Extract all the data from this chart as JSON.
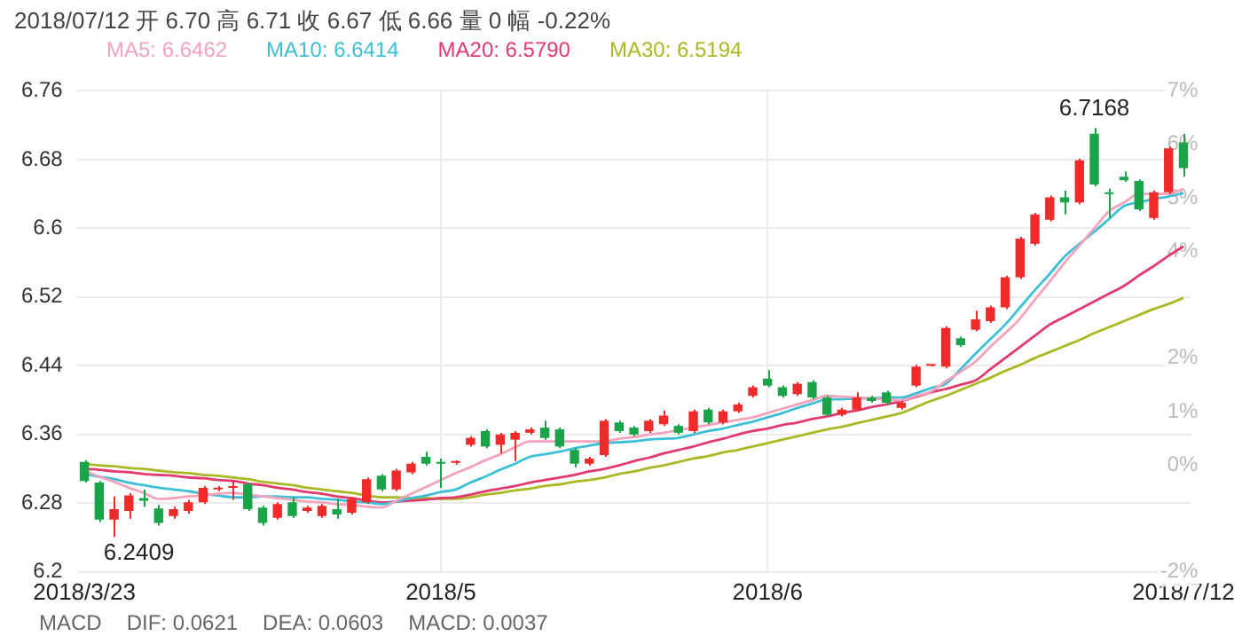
{
  "chart_data": {
    "type": "candlestick",
    "title": "2018/07/12 开 6.70 高 6.71 收 6.67 低 6.66 量 0 幅 -0.22%",
    "categories": [
      "2018/3/23",
      null,
      null,
      null,
      null,
      null,
      null,
      null,
      null,
      null,
      null,
      null,
      null,
      null,
      null,
      null,
      null,
      null,
      null,
      null,
      null,
      null,
      null,
      null,
      "2018/5",
      null,
      null,
      null,
      null,
      null,
      null,
      null,
      null,
      null,
      null,
      null,
      null,
      null,
      null,
      null,
      null,
      null,
      null,
      null,
      null,
      null,
      "2018/6",
      null,
      null,
      null,
      null,
      null,
      null,
      null,
      null,
      null,
      null,
      null,
      null,
      null,
      null,
      null,
      null,
      null,
      null,
      null,
      null,
      null,
      null,
      null,
      null,
      null,
      null,
      null,
      "2018/7/12"
    ],
    "ohlc": [
      [
        6.328,
        6.33,
        6.304,
        6.306
      ],
      [
        6.304,
        6.306,
        6.258,
        6.261
      ],
      [
        6.261,
        6.288,
        6.2409,
        6.273
      ],
      [
        6.271,
        6.292,
        6.262,
        6.289
      ],
      [
        6.286,
        6.296,
        6.276,
        6.283
      ],
      [
        6.274,
        6.278,
        6.254,
        6.257
      ],
      [
        6.265,
        6.276,
        6.262,
        6.273
      ],
      [
        6.271,
        6.284,
        6.268,
        6.281
      ],
      [
        6.281,
        6.3,
        6.279,
        6.298
      ],
      [
        6.296,
        6.3,
        6.294,
        6.298
      ],
      [
        6.298,
        6.306,
        6.284,
        6.298
      ],
      [
        6.302,
        6.304,
        6.271,
        6.273
      ],
      [
        6.275,
        6.277,
        6.254,
        6.257
      ],
      [
        6.263,
        6.281,
        6.261,
        6.279
      ],
      [
        6.281,
        6.287,
        6.263,
        6.265
      ],
      [
        6.271,
        6.277,
        6.269,
        6.275
      ],
      [
        6.265,
        6.279,
        6.263,
        6.277
      ],
      [
        6.273,
        6.285,
        6.262,
        6.267
      ],
      [
        6.269,
        6.287,
        6.267,
        6.285
      ],
      [
        6.281,
        6.31,
        6.279,
        6.308
      ],
      [
        6.312,
        6.314,
        6.294,
        6.296
      ],
      [
        6.296,
        6.32,
        6.294,
        6.318
      ],
      [
        6.316,
        6.328,
        6.314,
        6.326
      ],
      [
        6.334,
        6.34,
        6.324,
        6.326
      ],
      [
        6.328,
        6.332,
        6.298,
        6.326
      ],
      [
        6.327,
        6.33,
        6.325,
        6.328
      ],
      [
        6.348,
        6.358,
        6.346,
        6.356
      ],
      [
        6.364,
        6.366,
        6.344,
        6.346
      ],
      [
        6.348,
        6.362,
        6.338,
        6.36
      ],
      [
        6.354,
        6.364,
        6.329,
        6.362
      ],
      [
        6.362,
        6.368,
        6.36,
        6.366
      ],
      [
        6.368,
        6.376,
        6.354,
        6.356
      ],
      [
        6.366,
        6.368,
        6.344,
        6.346
      ],
      [
        6.342,
        6.344,
        6.322,
        6.326
      ],
      [
        6.326,
        6.334,
        6.324,
        6.332
      ],
      [
        6.336,
        6.378,
        6.334,
        6.376
      ],
      [
        6.374,
        6.376,
        6.362,
        6.364
      ],
      [
        6.368,
        6.37,
        6.358,
        6.36
      ],
      [
        6.364,
        6.378,
        6.362,
        6.376
      ],
      [
        6.372,
        6.388,
        6.37,
        6.382
      ],
      [
        6.37,
        6.372,
        6.36,
        6.362
      ],
      [
        6.364,
        6.389,
        6.362,
        6.387
      ],
      [
        6.389,
        6.391,
        6.372,
        6.374
      ],
      [
        6.374,
        6.389,
        6.372,
        6.387
      ],
      [
        6.387,
        6.397,
        6.385,
        6.395
      ],
      [
        6.405,
        6.417,
        6.403,
        6.415
      ],
      [
        6.425,
        6.435,
        6.415,
        6.417
      ],
      [
        6.415,
        6.417,
        6.403,
        6.405
      ],
      [
        6.407,
        6.421,
        6.405,
        6.419
      ],
      [
        6.421,
        6.423,
        6.401,
        6.403
      ],
      [
        6.403,
        6.405,
        6.381,
        6.383
      ],
      [
        6.383,
        6.391,
        6.381,
        6.389
      ],
      [
        6.389,
        6.409,
        6.387,
        6.403
      ],
      [
        6.403,
        6.405,
        6.397,
        6.399
      ],
      [
        6.409,
        6.411,
        6.395,
        6.397
      ],
      [
        6.391,
        6.399,
        6.389,
        6.397
      ],
      [
        6.417,
        6.441,
        6.415,
        6.439
      ],
      [
        6.44,
        6.442,
        6.439,
        6.441
      ],
      [
        6.439,
        6.486,
        6.437,
        6.484
      ],
      [
        6.472,
        6.474,
        6.462,
        6.464
      ],
      [
        6.482,
        6.504,
        6.48,
        6.494
      ],
      [
        6.492,
        6.51,
        6.49,
        6.508
      ],
      [
        6.508,
        6.545,
        6.506,
        6.543
      ],
      [
        6.543,
        6.59,
        6.541,
        6.588
      ],
      [
        6.582,
        6.618,
        6.58,
        6.616
      ],
      [
        6.61,
        6.638,
        6.608,
        6.636
      ],
      [
        6.636,
        6.644,
        6.616,
        6.63
      ],
      [
        6.63,
        6.681,
        6.628,
        6.679
      ],
      [
        6.71,
        6.7168,
        6.649,
        6.651
      ],
      [
        6.642,
        6.646,
        6.612,
        6.64
      ],
      [
        6.66,
        6.666,
        6.654,
        6.656
      ],
      [
        6.655,
        6.657,
        6.62,
        6.622
      ],
      [
        6.612,
        6.644,
        6.61,
        6.642
      ],
      [
        6.642,
        6.695,
        6.64,
        6.693
      ],
      [
        6.7,
        6.71,
        6.66,
        6.67
      ]
    ],
    "colors": [
      "#1ba34a",
      "#1ba34a",
      "#ee2a2a",
      "#ee2a2a",
      "#1ba34a",
      "#1ba34a",
      "#ee2a2a",
      "#ee2a2a",
      "#ee2a2a",
      "#ee2a2a",
      "#ee2a2a",
      "#1ba34a",
      "#1ba34a",
      "#ee2a2a",
      "#1ba34a",
      "#ee2a2a",
      "#ee2a2a",
      "#1ba34a",
      "#ee2a2a",
      "#ee2a2a",
      "#1ba34a",
      "#ee2a2a",
      "#ee2a2a",
      "#1ba34a",
      "#1ba34a",
      "#ee2a2a",
      "#ee2a2a",
      "#1ba34a",
      "#ee2a2a",
      "#ee2a2a",
      "#ee2a2a",
      "#1ba34a",
      "#1ba34a",
      "#1ba34a",
      "#ee2a2a",
      "#ee2a2a",
      "#1ba34a",
      "#1ba34a",
      "#ee2a2a",
      "#ee2a2a",
      "#1ba34a",
      "#ee2a2a",
      "#1ba34a",
      "#ee2a2a",
      "#ee2a2a",
      "#ee2a2a",
      "#1ba34a",
      "#1ba34a",
      "#ee2a2a",
      "#1ba34a",
      "#1ba34a",
      "#ee2a2a",
      "#ee2a2a",
      "#1ba34a",
      "#1ba34a",
      "#ee2a2a",
      "#ee2a2a",
      "#ee2a2a",
      "#ee2a2a",
      "#1ba34a",
      "#ee2a2a",
      "#ee2a2a",
      "#ee2a2a",
      "#ee2a2a",
      "#ee2a2a",
      "#ee2a2a",
      "#1ba34a",
      "#ee2a2a",
      "#1ba34a",
      "#1ba34a",
      "#1ba34a",
      "#1ba34a",
      "#ee2a2a",
      "#ee2a2a",
      "#1ba34a"
    ],
    "series": [
      {
        "name": "MA5: 6.6462",
        "type": "line",
        "color": "#f4a3bd",
        "values": [
          6.318,
          6.311,
          6.305,
          6.298,
          6.292,
          6.285,
          6.286,
          6.288,
          6.289,
          6.291,
          6.292,
          6.29,
          6.288,
          6.286,
          6.284,
          6.282,
          6.281,
          6.279,
          6.278,
          6.276,
          6.275,
          6.283,
          6.291,
          6.299,
          6.307,
          6.315,
          6.322,
          6.33,
          6.337,
          6.345,
          6.352,
          6.352,
          6.352,
          6.352,
          6.352,
          6.352,
          6.355,
          6.357,
          6.36,
          6.362,
          6.365,
          6.368,
          6.371,
          6.374,
          6.377,
          6.38,
          6.385,
          6.39,
          6.395,
          6.4,
          6.405,
          6.404,
          6.403,
          6.402,
          6.401,
          6.4,
          6.405,
          6.41,
          6.422,
          6.433,
          6.445,
          6.462,
          6.478,
          6.495,
          6.517,
          6.538,
          6.56,
          6.58,
          6.6,
          6.62,
          6.63,
          6.64,
          6.64,
          6.64,
          6.646
        ]
      },
      {
        "name": "MA10: 6.6414",
        "type": "line",
        "color": "#3cc0d6",
        "values": [
          6.314,
          6.311,
          6.308,
          6.304,
          6.301,
          6.298,
          6.296,
          6.294,
          6.291,
          6.289,
          6.287,
          6.287,
          6.288,
          6.288,
          6.287,
          6.287,
          6.285,
          6.284,
          6.282,
          6.281,
          6.279,
          6.282,
          6.286,
          6.289,
          6.293,
          6.296,
          6.304,
          6.311,
          6.319,
          6.326,
          6.334,
          6.337,
          6.34,
          6.344,
          6.347,
          6.35,
          6.351,
          6.352,
          6.354,
          6.355,
          6.356,
          6.36,
          6.364,
          6.367,
          6.371,
          6.375,
          6.38,
          6.385,
          6.391,
          6.396,
          6.401,
          6.401,
          6.402,
          6.402,
          6.403,
          6.403,
          6.408,
          6.414,
          6.419,
          6.436,
          6.454,
          6.471,
          6.488,
          6.508,
          6.528,
          6.547,
          6.567,
          6.582,
          6.596,
          6.611,
          6.626,
          6.63,
          6.634,
          6.637,
          6.641
        ]
      },
      {
        "name": "MA20: 6.5790",
        "type": "line",
        "color": "#e23a6e",
        "values": [
          6.32,
          6.319,
          6.317,
          6.316,
          6.314,
          6.313,
          6.312,
          6.31,
          6.309,
          6.307,
          6.306,
          6.303,
          6.301,
          6.298,
          6.296,
          6.293,
          6.291,
          6.288,
          6.286,
          6.283,
          6.281,
          6.282,
          6.283,
          6.284,
          6.286,
          6.287,
          6.29,
          6.294,
          6.297,
          6.3,
          6.304,
          6.307,
          6.31,
          6.313,
          6.317,
          6.32,
          6.324,
          6.329,
          6.333,
          6.338,
          6.342,
          6.346,
          6.351,
          6.355,
          6.36,
          6.364,
          6.367,
          6.371,
          6.374,
          6.378,
          6.381,
          6.385,
          6.388,
          6.392,
          6.395,
          6.399,
          6.404,
          6.409,
          6.413,
          6.418,
          6.423,
          6.436,
          6.449,
          6.462,
          6.475,
          6.488,
          6.497,
          6.506,
          6.515,
          6.524,
          6.533,
          6.545,
          6.556,
          6.568,
          6.579
        ]
      },
      {
        "name": "MA30: 6.5194",
        "type": "line",
        "color": "#a9b823",
        "values": [
          6.326,
          6.324,
          6.323,
          6.321,
          6.32,
          6.318,
          6.316,
          6.315,
          6.313,
          6.312,
          6.31,
          6.308,
          6.305,
          6.303,
          6.301,
          6.298,
          6.296,
          6.294,
          6.292,
          6.289,
          6.287,
          6.287,
          6.286,
          6.286,
          6.285,
          6.285,
          6.287,
          6.29,
          6.292,
          6.295,
          6.297,
          6.3,
          6.302,
          6.305,
          6.307,
          6.31,
          6.314,
          6.317,
          6.321,
          6.324,
          6.328,
          6.332,
          6.335,
          6.339,
          6.342,
          6.346,
          6.35,
          6.354,
          6.358,
          6.362,
          6.366,
          6.369,
          6.373,
          6.377,
          6.381,
          6.385,
          6.392,
          6.399,
          6.405,
          6.412,
          6.419,
          6.426,
          6.434,
          6.441,
          6.449,
          6.456,
          6.463,
          6.47,
          6.478,
          6.485,
          6.492,
          6.499,
          6.506,
          6.512,
          6.519
        ]
      }
    ],
    "ylim": [
      6.2,
      6.76
    ],
    "yticks": [
      6.2,
      6.28,
      6.36,
      6.44,
      6.52,
      6.6,
      6.68,
      6.76
    ],
    "y2lim": [
      -2,
      7
    ],
    "y2ticks": [
      {
        "value": 7,
        "label": "7%"
      },
      {
        "value": 6,
        "label": "6%"
      },
      {
        "value": 5,
        "label": "5%"
      },
      {
        "value": 4,
        "label": "4%"
      },
      {
        "value": 2,
        "label": "2%"
      },
      {
        "value": 1,
        "label": "1%"
      },
      {
        "value": 0,
        "label": "0%"
      },
      {
        "value": -2,
        "label": "-2%"
      }
    ],
    "grid": true,
    "legend": "top left",
    "marker": "none",
    "annotations": [
      {
        "text": "6.7168",
        "y": 6.7168
      },
      "6.2409",
      "MACD",
      "DIF: 0.0621",
      "DEA: 0.0603",
      "MACD: 0.0037"
    ]
  }
}
